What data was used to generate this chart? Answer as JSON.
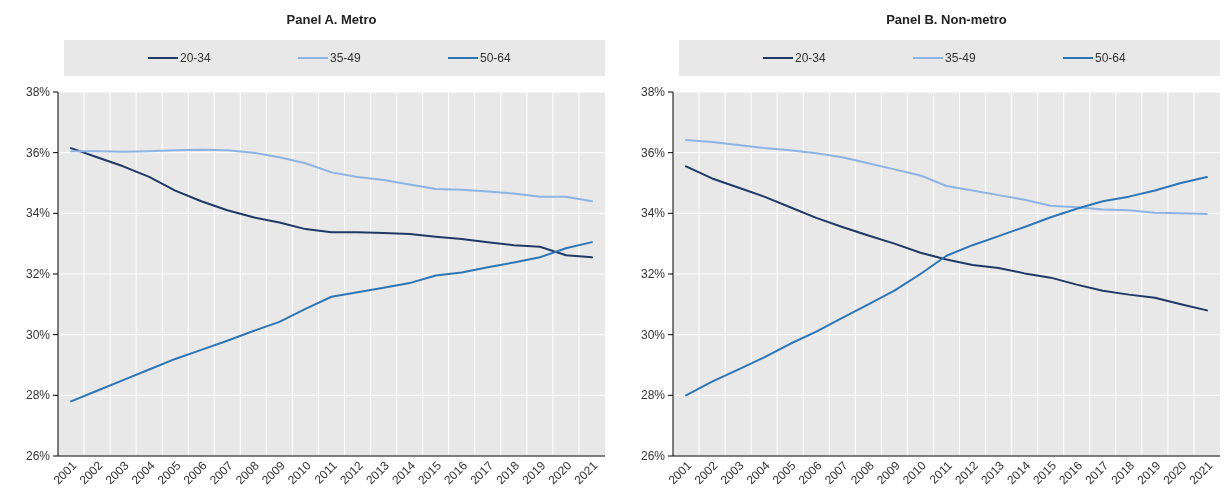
{
  "chart_data": [
    {
      "type": "line",
      "title": "Panel A. Metro",
      "categories": [
        "2001",
        "2002",
        "2003",
        "2004",
        "2005",
        "2006",
        "2007",
        "2008",
        "2009",
        "2010",
        "2011",
        "2012",
        "2013",
        "2014",
        "2015",
        "2016",
        "2017",
        "2018",
        "2019",
        "2020",
        "2021"
      ],
      "series": [
        {
          "name": "20-34",
          "color": "#1f3864",
          "values": [
            36.15,
            35.85,
            35.55,
            35.2,
            34.75,
            34.4,
            34.1,
            33.87,
            33.7,
            33.48,
            33.38,
            33.38,
            33.35,
            33.32,
            33.23,
            33.15,
            33.05,
            32.95,
            32.9,
            32.62,
            32.55
          ]
        },
        {
          "name": "35-49",
          "color": "#8db3e2",
          "values": [
            36.05,
            36.05,
            36.03,
            36.05,
            36.08,
            36.1,
            36.08,
            36.0,
            35.85,
            35.65,
            35.35,
            35.2,
            35.1,
            34.95,
            34.8,
            34.78,
            34.72,
            34.65,
            34.55,
            34.55,
            34.4
          ]
        },
        {
          "name": "50-64",
          "color": "#2e75b6",
          "values": [
            27.8,
            28.15,
            28.5,
            28.85,
            29.2,
            29.5,
            29.8,
            30.12,
            30.42,
            30.85,
            31.25,
            31.4,
            31.55,
            31.7,
            31.95,
            32.05,
            32.22,
            32.38,
            32.55,
            32.85,
            33.05
          ]
        }
      ],
      "ylim": [
        26,
        38
      ],
      "yticks": [
        {
          "value": 26,
          "label": "26%"
        },
        {
          "value": 28,
          "label": "28%"
        },
        {
          "value": 30,
          "label": "30%"
        },
        {
          "value": 32,
          "label": "32%"
        },
        {
          "value": 34,
          "label": "34%"
        },
        {
          "value": 36,
          "label": "36%"
        },
        {
          "value": 38,
          "label": "38%"
        }
      ],
      "grid": true,
      "legend": "top",
      "line_style": "solid"
    },
    {
      "type": "line",
      "title": "Panel B. Non-metro",
      "categories": [
        "2001",
        "2002",
        "2003",
        "2004",
        "2005",
        "2006",
        "2007",
        "2008",
        "2009",
        "2010",
        "2011",
        "2012",
        "2013",
        "2014",
        "2015",
        "2016",
        "2017",
        "2018",
        "2019",
        "2020",
        "2021"
      ],
      "series": [
        {
          "name": "20-34",
          "color": "#1f3864",
          "values": [
            35.55,
            35.15,
            34.85,
            34.55,
            34.2,
            33.85,
            33.55,
            33.27,
            33.0,
            32.7,
            32.48,
            32.3,
            32.2,
            32.02,
            31.88,
            31.65,
            31.45,
            31.32,
            31.22,
            31.0,
            30.8
          ]
        },
        {
          "name": "35-49",
          "color": "#8db3e2",
          "values": [
            36.42,
            36.35,
            36.25,
            36.15,
            36.08,
            35.98,
            35.85,
            35.65,
            35.45,
            35.25,
            34.9,
            34.75,
            34.6,
            34.45,
            34.25,
            34.2,
            34.13,
            34.1,
            34.02,
            34.0,
            33.98
          ]
        },
        {
          "name": "50-64",
          "color": "#2e75b6",
          "values": [
            28.0,
            28.45,
            28.85,
            29.25,
            29.7,
            30.1,
            30.55,
            31.0,
            31.45,
            32.0,
            32.6,
            32.95,
            33.25,
            33.55,
            33.87,
            34.15,
            34.4,
            34.55,
            34.75,
            35.0,
            35.2
          ]
        }
      ],
      "ylim": [
        26,
        38
      ],
      "yticks": [
        {
          "value": 26,
          "label": "26%"
        },
        {
          "value": 28,
          "label": "28%"
        },
        {
          "value": 30,
          "label": "30%"
        },
        {
          "value": 32,
          "label": "32%"
        },
        {
          "value": 34,
          "label": "34%"
        },
        {
          "value": 36,
          "label": "36%"
        },
        {
          "value": 38,
          "label": "38%"
        }
      ],
      "grid": true,
      "legend": "top",
      "line_style": "solid"
    }
  ]
}
